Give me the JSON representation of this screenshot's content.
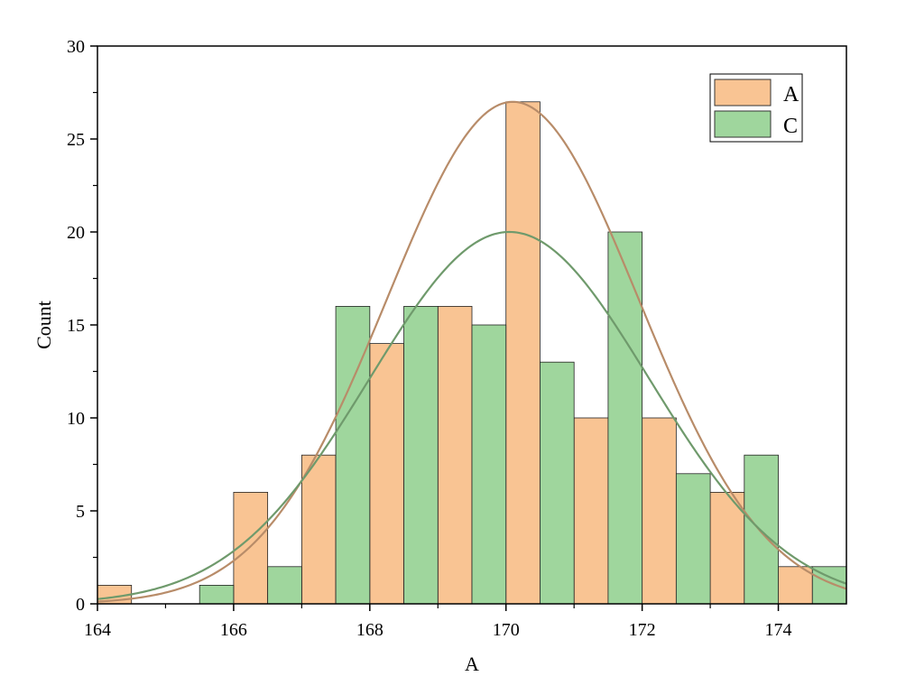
{
  "chart_data": {
    "type": "bar",
    "xlabel": "A",
    "ylabel": "Count",
    "xlim": [
      164,
      175
    ],
    "ylim": [
      0,
      30
    ],
    "x_ticks": [
      "164",
      "166",
      "168",
      "170",
      "172",
      "174"
    ],
    "y_ticks": [
      "0",
      "5",
      "10",
      "15",
      "20",
      "25",
      "30"
    ],
    "legend_position": "top-right",
    "series": [
      {
        "name": "A",
        "color": "#F9C493",
        "curve_color": "#B88C69",
        "bins": [
          {
            "x0": 164.0,
            "x1": 164.5,
            "value": 1
          },
          {
            "x0": 166.0,
            "x1": 166.5,
            "value": 6
          },
          {
            "x0": 167.0,
            "x1": 167.5,
            "value": 8
          },
          {
            "x0": 168.0,
            "x1": 168.5,
            "value": 14
          },
          {
            "x0": 169.0,
            "x1": 169.5,
            "value": 16
          },
          {
            "x0": 170.0,
            "x1": 170.5,
            "value": 27
          },
          {
            "x0": 171.0,
            "x1": 171.5,
            "value": 10
          },
          {
            "x0": 172.0,
            "x1": 172.5,
            "value": 10
          },
          {
            "x0": 173.0,
            "x1": 173.5,
            "value": 6
          },
          {
            "x0": 174.0,
            "x1": 174.5,
            "value": 2
          }
        ],
        "fit": {
          "type": "normal",
          "peak": 27,
          "mean": 170.1,
          "sd": 1.85
        }
      },
      {
        "name": "C",
        "color": "#9FD69D",
        "curve_color": "#6F9A6C",
        "bins": [
          {
            "x0": 165.5,
            "x1": 166.0,
            "value": 1
          },
          {
            "x0": 166.5,
            "x1": 167.0,
            "value": 2
          },
          {
            "x0": 167.5,
            "x1": 168.0,
            "value": 16
          },
          {
            "x0": 168.5,
            "x1": 169.0,
            "value": 16
          },
          {
            "x0": 169.5,
            "x1": 170.0,
            "value": 15
          },
          {
            "x0": 170.5,
            "x1": 171.0,
            "value": 13
          },
          {
            "x0": 171.5,
            "x1": 172.0,
            "value": 20
          },
          {
            "x0": 172.5,
            "x1": 173.0,
            "value": 7
          },
          {
            "x0": 173.5,
            "x1": 174.0,
            "value": 8
          },
          {
            "x0": 174.5,
            "x1": 175.0,
            "value": 2
          }
        ],
        "fit": {
          "type": "normal",
          "peak": 20,
          "mean": 170.05,
          "sd": 2.05
        }
      }
    ]
  }
}
